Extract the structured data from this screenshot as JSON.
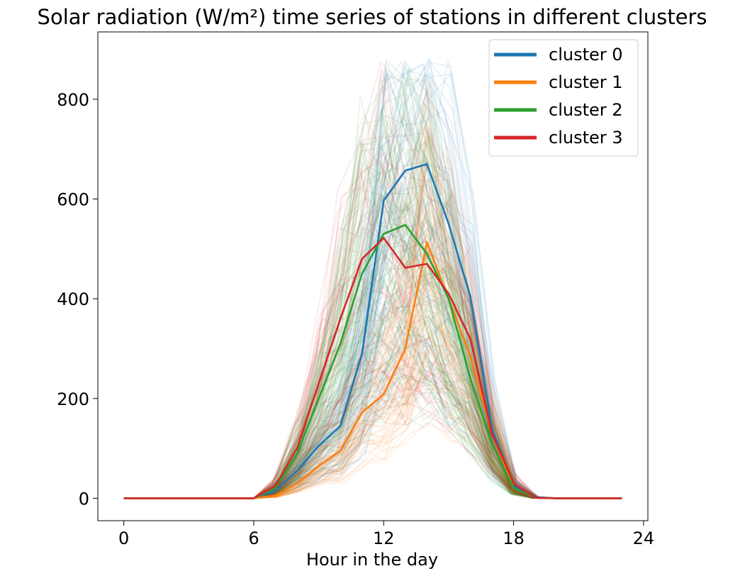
{
  "chart_data": {
    "type": "line",
    "title": "Solar radiation (W/m²) time series of stations in different clusters",
    "xlabel": "Hour in the day",
    "ylabel": "",
    "xlim": [
      -1.2,
      24.2
    ],
    "ylim": [
      -45,
      935
    ],
    "xticks": [
      0,
      6,
      12,
      18,
      24
    ],
    "yticks": [
      0,
      200,
      400,
      600,
      800
    ],
    "grid": false,
    "legend_position": "top-right",
    "x": [
      0,
      1,
      2,
      3,
      4,
      5,
      6,
      7,
      8,
      9,
      10,
      11,
      12,
      13,
      14,
      15,
      16,
      17,
      18,
      19,
      20,
      21,
      22,
      23
    ],
    "series": [
      {
        "name": "cluster 0",
        "color": "#1f77b4",
        "values": [
          0,
          0,
          0,
          0,
          0,
          0,
          0,
          15,
          55,
          105,
          145,
          290,
          597,
          657,
          670,
          550,
          405,
          140,
          25,
          2,
          0,
          0,
          0,
          0
        ]
      },
      {
        "name": "cluster 1",
        "color": "#ff7f0e",
        "values": [
          0,
          0,
          0,
          0,
          0,
          0,
          0,
          5,
          30,
          65,
          95,
          172,
          208,
          300,
          513,
          400,
          285,
          130,
          20,
          1,
          0,
          0,
          0,
          0
        ]
      },
      {
        "name": "cluster 2",
        "color": "#2ca02c",
        "values": [
          0,
          0,
          0,
          0,
          0,
          0,
          0,
          20,
          90,
          200,
          310,
          450,
          530,
          548,
          490,
          400,
          240,
          110,
          20,
          1,
          0,
          0,
          0,
          0
        ]
      },
      {
        "name": "cluster 3",
        "color": "#d62728",
        "values": [
          0,
          0,
          0,
          0,
          0,
          0,
          0,
          25,
          100,
          230,
          360,
          480,
          522,
          462,
          470,
          410,
          320,
          130,
          30,
          1,
          0,
          0,
          0,
          0
        ]
      }
    ]
  }
}
